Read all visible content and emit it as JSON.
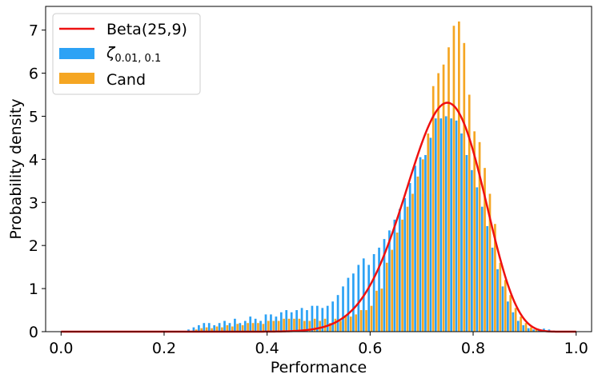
{
  "chart_data": {
    "type": "bar",
    "xlabel": "Performance",
    "ylabel": "Probability density",
    "xlim": [
      -0.03,
      1.03
    ],
    "ylim": [
      0,
      7.55
    ],
    "xticks": [
      "0.0",
      "0.2",
      "0.4",
      "0.6",
      "0.8",
      "1.0"
    ],
    "xtick_values": [
      0.0,
      0.2,
      0.4,
      0.6,
      0.8,
      1.0
    ],
    "yticks": [
      "0",
      "1",
      "2",
      "3",
      "4",
      "5",
      "6",
      "7"
    ],
    "ytick_values": [
      0,
      1,
      2,
      3,
      4,
      5,
      6,
      7
    ],
    "grid": false,
    "legend_placement": "top-left",
    "bin_width": 0.01,
    "series": [
      {
        "name": "ζ",
        "subscript": "0.01, 0.1",
        "kind": "histogram",
        "color": "#2ca2f5",
        "x": [
          0.25,
          0.26,
          0.27,
          0.28,
          0.29,
          0.3,
          0.31,
          0.32,
          0.33,
          0.34,
          0.35,
          0.36,
          0.37,
          0.38,
          0.39,
          0.4,
          0.41,
          0.42,
          0.43,
          0.44,
          0.45,
          0.46,
          0.47,
          0.48,
          0.49,
          0.5,
          0.51,
          0.52,
          0.53,
          0.54,
          0.55,
          0.56,
          0.57,
          0.58,
          0.59,
          0.6,
          0.61,
          0.62,
          0.63,
          0.64,
          0.65,
          0.66,
          0.67,
          0.68,
          0.69,
          0.7,
          0.71,
          0.72,
          0.73,
          0.74,
          0.75,
          0.76,
          0.77,
          0.78,
          0.79,
          0.8,
          0.81,
          0.82,
          0.83,
          0.84,
          0.85,
          0.86,
          0.87,
          0.88,
          0.89,
          0.9,
          0.91,
          0.92,
          0.93,
          0.94,
          0.95,
          0.96
        ],
        "values": [
          0.05,
          0.1,
          0.15,
          0.2,
          0.2,
          0.15,
          0.2,
          0.25,
          0.2,
          0.3,
          0.2,
          0.25,
          0.35,
          0.3,
          0.25,
          0.4,
          0.4,
          0.35,
          0.45,
          0.5,
          0.45,
          0.5,
          0.55,
          0.5,
          0.6,
          0.6,
          0.55,
          0.6,
          0.7,
          0.85,
          1.05,
          1.25,
          1.35,
          1.55,
          1.7,
          1.55,
          1.8,
          1.95,
          2.15,
          2.35,
          2.6,
          2.85,
          3.1,
          3.45,
          3.85,
          4.05,
          4.1,
          4.5,
          4.95,
          4.95,
          5.0,
          4.95,
          4.9,
          4.6,
          4.1,
          3.75,
          3.35,
          2.9,
          2.45,
          1.95,
          1.45,
          1.05,
          0.7,
          0.45,
          0.25,
          0.15,
          0.08,
          0.05,
          0.03,
          0.07,
          0.05,
          0.02
        ]
      },
      {
        "name": "Cand",
        "kind": "histogram",
        "color": "#f5a623",
        "x": [
          0.26,
          0.27,
          0.28,
          0.29,
          0.3,
          0.31,
          0.32,
          0.33,
          0.34,
          0.35,
          0.36,
          0.37,
          0.38,
          0.39,
          0.4,
          0.41,
          0.42,
          0.43,
          0.44,
          0.45,
          0.46,
          0.47,
          0.48,
          0.49,
          0.5,
          0.51,
          0.52,
          0.53,
          0.54,
          0.55,
          0.56,
          0.57,
          0.58,
          0.59,
          0.6,
          0.61,
          0.62,
          0.63,
          0.64,
          0.65,
          0.66,
          0.67,
          0.68,
          0.69,
          0.7,
          0.71,
          0.72,
          0.73,
          0.74,
          0.75,
          0.76,
          0.77,
          0.78,
          0.79,
          0.8,
          0.81,
          0.82,
          0.83,
          0.84,
          0.85,
          0.86,
          0.87,
          0.88,
          0.89,
          0.9,
          0.91,
          0.92,
          0.93,
          0.94,
          0.95
        ],
        "values": [
          0.05,
          0.08,
          0.1,
          0.08,
          0.12,
          0.1,
          0.15,
          0.12,
          0.18,
          0.15,
          0.2,
          0.2,
          0.2,
          0.18,
          0.25,
          0.25,
          0.25,
          0.3,
          0.3,
          0.3,
          0.3,
          0.25,
          0.25,
          0.3,
          0.25,
          0.3,
          0.2,
          0.3,
          0.25,
          0.35,
          0.35,
          0.4,
          0.5,
          0.5,
          0.6,
          0.95,
          1.0,
          1.6,
          1.9,
          2.3,
          2.6,
          2.9,
          3.2,
          3.6,
          4.0,
          4.6,
          5.7,
          6.0,
          6.2,
          6.6,
          7.1,
          7.2,
          6.7,
          5.5,
          4.65,
          4.4,
          3.8,
          3.2,
          2.5,
          1.6,
          1.2,
          0.85,
          0.55,
          0.35,
          0.2,
          0.1,
          0.05,
          0.03,
          0.02,
          0.01
        ]
      },
      {
        "name": "Beta(25,9)",
        "kind": "pdf",
        "color": "#ee1111",
        "alpha": 25,
        "beta": 9,
        "x_range": [
          0.0,
          1.0
        ]
      }
    ]
  }
}
